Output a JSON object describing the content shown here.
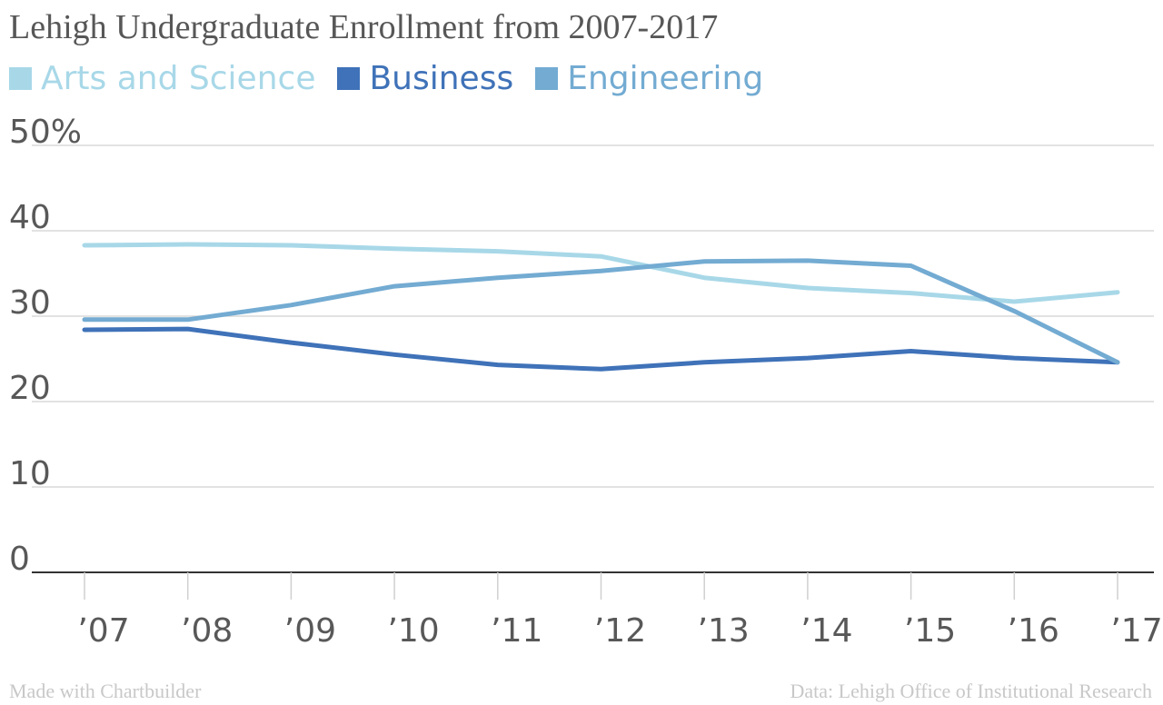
{
  "chart_data": {
    "type": "line",
    "title": "Lehigh Undergraduate Enrollment from 2007-2017",
    "categories": [
      "’07",
      "’08",
      "’09",
      "’10",
      "’11",
      "’12",
      "’13",
      "’14",
      "’15",
      "’16",
      "’17"
    ],
    "series": [
      {
        "name": "Arts and Science",
        "color": "#a8d8e8",
        "values": [
          38.3,
          38.4,
          38.3,
          37.9,
          37.6,
          37.0,
          34.5,
          33.3,
          32.7,
          31.7,
          32.8
        ]
      },
      {
        "name": "Business",
        "color": "#3f72b8",
        "values": [
          28.4,
          28.5,
          26.9,
          25.5,
          24.3,
          23.8,
          24.6,
          25.1,
          25.9,
          25.1,
          24.6
        ]
      },
      {
        "name": "Engineering",
        "color": "#73abd2",
        "values": [
          29.6,
          29.6,
          31.3,
          33.5,
          34.5,
          35.3,
          36.4,
          36.5,
          35.9,
          30.6,
          24.6
        ]
      }
    ],
    "y_ticks": [
      "50%",
      "40",
      "30",
      "20",
      "10",
      "0"
    ],
    "y_tick_values": [
      50,
      40,
      30,
      20,
      10,
      0
    ],
    "ylim": [
      0,
      50
    ],
    "grid": true,
    "legend": "top-left",
    "xlabel": "",
    "ylabel": ""
  },
  "footer": {
    "left": "Made with Chartbuilder",
    "right": "Data: Lehigh Office of Institutional Research"
  }
}
